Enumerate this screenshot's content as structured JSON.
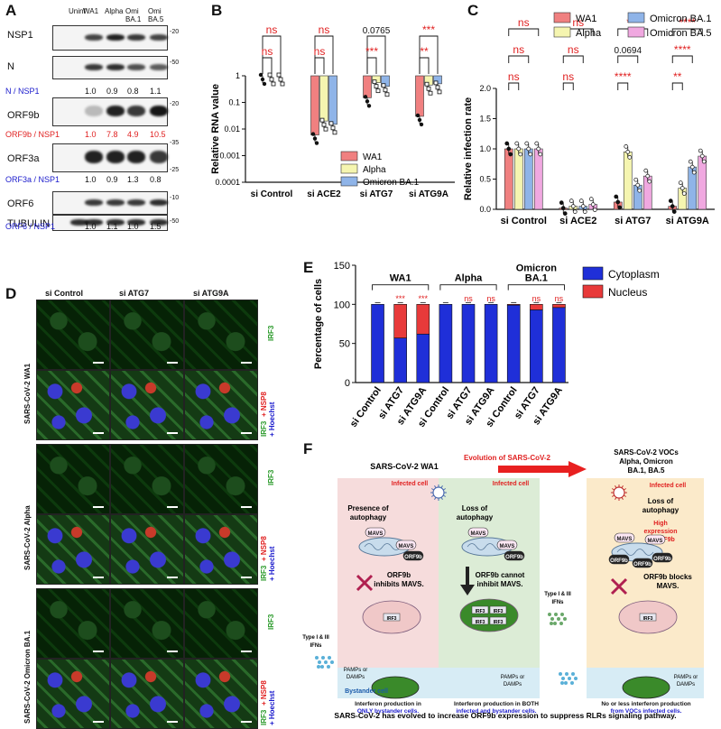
{
  "panels": {
    "A": "A",
    "B": "B",
    "C": "C",
    "D": "D",
    "E": "E",
    "F": "F"
  },
  "panel_a": {
    "lanes": [
      "Uninf",
      "WA1",
      "Alpha",
      "Omi\nBA.1",
      "Omi\nBA.5"
    ],
    "lane_lines": [
      [
        "Uninf"
      ],
      [
        "WA1"
      ],
      [
        "Alpha"
      ],
      [
        "Omi",
        "BA.1"
      ],
      [
        "Omi",
        "BA.5"
      ]
    ],
    "blots": [
      {
        "label": "NSP1",
        "mw": "-20"
      },
      {
        "label": "N",
        "mw": "-50"
      },
      {
        "label": "ORF9b",
        "mw": "-20"
      },
      {
        "label": "ORF3a",
        "mw_top": "-35",
        "mw_bot": "-25"
      },
      {
        "label": "ORF6",
        "mw": "-10"
      },
      {
        "label": "TUBULIN",
        "mw": "-50"
      }
    ],
    "ratios": [
      {
        "label": "N / NSP1",
        "color": "#1a1acc",
        "values": [
          "1.0",
          "0.9",
          "0.8",
          "1.1"
        ]
      },
      {
        "label": "ORF9b / NSP1",
        "color": "#e02020",
        "values": [
          "1.0",
          "7.8",
          "4.9",
          "10.5"
        ]
      },
      {
        "label": "ORF3a / NSP1",
        "color": "#1a1acc",
        "values": [
          "1.0",
          "0.9",
          "1.3",
          "0.8"
        ]
      },
      {
        "label": "ORF6 / NSP1",
        "color": "#1a1acc",
        "values": [
          "1.0",
          "1.1",
          "1.0",
          "1.5"
        ]
      }
    ]
  },
  "chart_data": [
    {
      "panel": "B",
      "type": "bar",
      "ylabel": "Relative RNA value",
      "yscale": "log",
      "ylim": [
        0.0001,
        1
      ],
      "yticks": [
        "1",
        "0.1",
        "0.01",
        "0.001",
        "0.0001"
      ],
      "categories": [
        "si Control",
        "si ACE2",
        "si ATG7",
        "si ATG9A"
      ],
      "series": [
        {
          "name": "WA1",
          "color": "#f08080",
          "values": [
            1.0,
            0.006,
            0.15,
            0.03
          ]
        },
        {
          "name": "Alpha",
          "color": "#f5f5b0",
          "values": [
            1.0,
            0.02,
            0.55,
            0.45
          ]
        },
        {
          "name": "Omicron BA.1",
          "color": "#8fb4e8",
          "values": [
            1.0,
            0.015,
            0.4,
            0.5
          ]
        }
      ],
      "annotations": [
        {
          "text": "ns",
          "color": "#e02020"
        },
        {
          "text": "ns",
          "color": "#e02020"
        },
        {
          "text": "ns",
          "color": "#e02020"
        },
        {
          "text": "ns",
          "color": "#e02020"
        },
        {
          "text": "0.0765",
          "color": "#111"
        },
        {
          "text": "***",
          "color": "#e02020"
        },
        {
          "text": "***",
          "color": "#e02020"
        },
        {
          "text": "**",
          "color": "#e02020"
        }
      ]
    },
    {
      "panel": "C",
      "type": "bar",
      "ylabel": "Relative infection rate",
      "ylim": [
        0,
        2.0
      ],
      "yticks": [
        "0.0",
        "0.5",
        "1.0",
        "1.5",
        "2.0"
      ],
      "categories": [
        "si Control",
        "si ACE2",
        "si ATG7",
        "si ATG9A"
      ],
      "series": [
        {
          "name": "WA1",
          "color": "#f08080",
          "values": [
            1.0,
            0.02,
            0.12,
            0.05
          ]
        },
        {
          "name": "Alpha",
          "color": "#f5f5b0",
          "values": [
            1.0,
            0.05,
            0.95,
            0.35
          ]
        },
        {
          "name": "Omicron BA.1",
          "color": "#8fb4e8",
          "values": [
            1.0,
            0.05,
            0.4,
            0.7
          ]
        },
        {
          "name": "Omicron BA.5",
          "color": "#f0a8e0",
          "values": [
            1.0,
            0.08,
            0.55,
            0.88
          ]
        }
      ],
      "annotations": [
        {
          "text": "ns",
          "color": "#e02020"
        },
        {
          "text": "ns",
          "color": "#e02020"
        },
        {
          "text": "ns",
          "color": "#e02020"
        },
        {
          "text": "ns",
          "color": "#e02020"
        },
        {
          "text": "ns",
          "color": "#e02020"
        },
        {
          "text": "ns",
          "color": "#e02020"
        },
        {
          "text": "***",
          "color": "#e02020"
        },
        {
          "text": "0.0694",
          "color": "#111"
        },
        {
          "text": "****",
          "color": "#e02020"
        },
        {
          "text": "****",
          "color": "#e02020"
        },
        {
          "text": "****",
          "color": "#e02020"
        },
        {
          "text": "**",
          "color": "#e02020"
        }
      ]
    },
    {
      "panel": "E",
      "type": "bar",
      "ylabel": "Percentage of cells",
      "ylim": [
        0,
        150
      ],
      "yticks": [
        "0",
        "50",
        "100",
        "150"
      ],
      "categories": [
        "si Control",
        "si ATG7",
        "si ATG9A",
        "si Control",
        "si ATG7",
        "si ATG9A",
        "si Control",
        "si ATG7",
        "si ATG9A"
      ],
      "groups": [
        "WA1",
        "Alpha",
        "Omicron\nBA.1"
      ],
      "group_lines": [
        [
          "WA1"
        ],
        [
          "Alpha"
        ],
        [
          "Omicron",
          "BA.1"
        ]
      ],
      "series": [
        {
          "name": "Cytoplasm",
          "color": "#1f2fd8",
          "values": [
            100,
            57,
            62,
            100,
            100,
            100,
            99,
            93,
            96
          ]
        },
        {
          "name": "Nucleus",
          "color": "#e83a3a",
          "values": [
            0,
            43,
            38,
            0,
            0,
            0,
            1,
            7,
            4
          ]
        }
      ],
      "annotations": [
        "***",
        "***",
        "ns",
        "ns",
        "ns",
        "ns"
      ]
    }
  ],
  "panel_d": {
    "columns": [
      "si Control",
      "si ATG7",
      "si ATG9A"
    ],
    "row_groups": [
      "SARS-CoV-2 WA1",
      "SARS-CoV-2 Alpha",
      "SARS-CoV-2 Omicron BA.1"
    ],
    "irf3": "IRF3",
    "merge": [
      "IRF3",
      "+ NSP8",
      "+ Hoechst"
    ]
  },
  "panel_f": {
    "evolution": "Evolution of SARS-CoV-2",
    "wa1_title": "SARS-CoV-2 WA1",
    "voc_title": [
      "SARS-CoV-2 VOCs",
      "Alpha, Omicron",
      "BA.1, BA.5"
    ],
    "infected_cell": "Infected cell",
    "presence": [
      "Presence of",
      "autophagy"
    ],
    "loss": [
      "Loss of",
      "autophagy"
    ],
    "high_expr": [
      "High",
      "expression",
      "of ORF9b"
    ],
    "mavs": "MAVS",
    "orf9b": "ORF9b",
    "inhibits": [
      "ORF9b",
      "inhibits MAVS."
    ],
    "cannot": [
      "ORF9b cannot",
      "inhibit MAVS."
    ],
    "blocks": [
      "ORF9b blocks",
      "MAVS."
    ],
    "ifn": [
      "Type I & III",
      "IFNs"
    ],
    "irf3": "IRF3",
    "pamps": [
      "PAMPs or",
      "DAMPs"
    ],
    "bystander": "Bystander cell",
    "caption1": [
      "Interferon production in",
      "ONLY bystander cells."
    ],
    "caption2": [
      "Interferon production in BOTH",
      "infected and bystander cells."
    ],
    "caption3": [
      "No or less interferon production",
      "from VOCs infected cells."
    ],
    "footer": "SARS-CoV-2 has evolved to increase ORF9b expression to suppress RLRs signaling pathway."
  }
}
